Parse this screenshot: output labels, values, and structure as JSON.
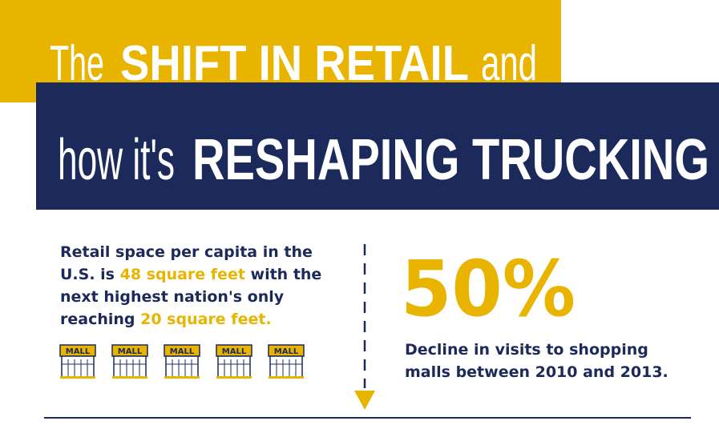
{
  "header": {
    "line1": {
      "lead": "The",
      "emphasis": "SHIFT IN RETAIL",
      "trail": "and"
    },
    "line2": {
      "lead": "how it's",
      "emphasis": "RESHAPING TRUCKING"
    }
  },
  "left_stat": {
    "parts": [
      "Retail space per capita in the U.S. is ",
      "48 square feet",
      " with the next highest nation's only reaching ",
      "20 square feet."
    ]
  },
  "mall_icons": [
    "MALL",
    "MALL",
    "MALL",
    "MALL",
    "MALL"
  ],
  "right_stat": {
    "value": "50%",
    "caption": "Decline in visits to shopping malls between 2010 and 2013."
  }
}
